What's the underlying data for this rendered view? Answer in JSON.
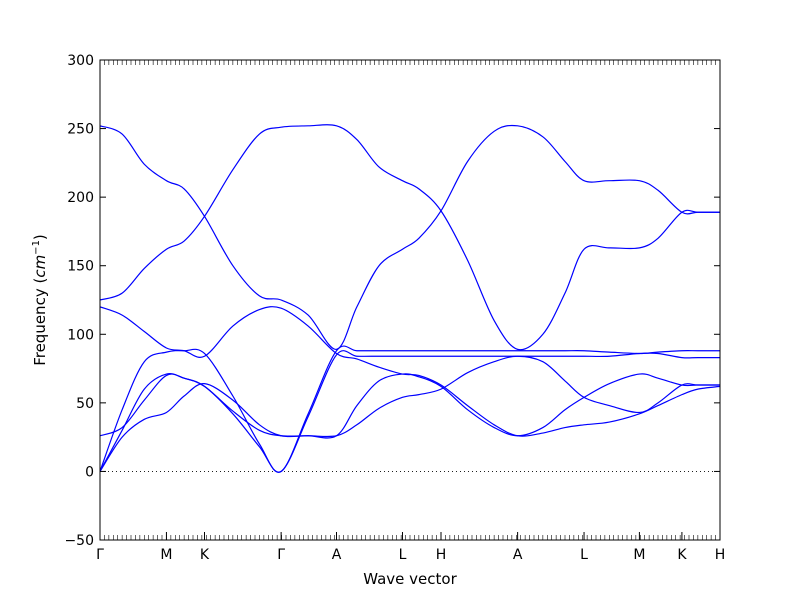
{
  "chart_data": {
    "type": "line",
    "title": "",
    "xlabel": "Wave vector",
    "ylabel": "Frequency",
    "ylabel_unit_base": "cm",
    "ylabel_unit_exp": "−1",
    "ylim": [
      -50,
      300
    ],
    "yticks": [
      -50,
      0,
      50,
      100,
      150,
      200,
      250,
      300
    ],
    "xlim": [
      0,
      14
    ],
    "xticks": [
      {
        "x": 0,
        "label": "Γ"
      },
      {
        "x": 1.5,
        "label": "M"
      },
      {
        "x": 2.36,
        "label": "K"
      },
      {
        "x": 4.09,
        "label": "Γ"
      },
      {
        "x": 5.34,
        "label": "A"
      },
      {
        "x": 6.83,
        "label": "L"
      },
      {
        "x": 7.7,
        "label": "H"
      },
      {
        "x": 9.43,
        "label": "A"
      },
      {
        "x": 10.93,
        "label": "L"
      },
      {
        "x": 12.18,
        "label": "M"
      },
      {
        "x": 13.14,
        "label": "K"
      },
      {
        "x": 14,
        "label": "H"
      }
    ],
    "zero_line": true,
    "grid": false,
    "color": "#0000ff",
    "series": [
      {
        "x": [
          0,
          0.5,
          1.0,
          1.5,
          1.9,
          2.36,
          3.0,
          3.6,
          4.09,
          4.7,
          5.34,
          5.8,
          6.3,
          6.83,
          7.2,
          7.7,
          8.3,
          8.9,
          9.43,
          10.0,
          10.5,
          10.93,
          11.5,
          12.18,
          12.6,
          13.14,
          13.5,
          14
        ],
        "y": [
          0,
          45,
          80,
          87,
          88,
          86,
          55,
          20,
          0,
          42,
          88,
          88,
          88,
          88,
          88,
          88,
          88,
          88,
          88,
          88,
          88,
          88,
          87,
          86,
          87,
          88,
          88,
          88
        ]
      },
      {
        "x": [
          0,
          0.5,
          1.0,
          1.5,
          1.9,
          2.36,
          3.0,
          3.6,
          4.09,
          4.7,
          5.34,
          5.8,
          6.3,
          6.83,
          7.2,
          7.7,
          8.3,
          8.9,
          9.43,
          10.0,
          10.5,
          10.93,
          11.5,
          12.18,
          12.6,
          13.14,
          13.5,
          14
        ],
        "y": [
          0,
          30,
          60,
          71,
          68,
          62,
          42,
          18,
          0,
          40,
          85,
          84,
          84,
          84,
          84,
          84,
          84,
          84,
          84,
          84,
          84,
          84,
          84,
          86,
          86,
          83,
          83,
          83
        ]
      },
      {
        "x": [
          0,
          0.5,
          1.0,
          1.5,
          1.9,
          2.36,
          3.0,
          3.6,
          4.09,
          4.7,
          5.34,
          5.8,
          6.3,
          6.83,
          7.2,
          7.7,
          8.3,
          8.9,
          9.43,
          10.0,
          10.5,
          10.93,
          11.5,
          12.18,
          12.6,
          13.14,
          13.5,
          14
        ],
        "y": [
          0,
          25,
          38,
          43,
          55,
          64,
          52,
          34,
          26,
          26,
          26,
          34,
          46,
          54,
          56,
          60,
          72,
          80,
          84,
          80,
          66,
          54,
          48,
          43,
          50,
          63,
          63,
          63
        ]
      },
      {
        "x": [
          0,
          0.5,
          1.0,
          1.5,
          1.9,
          2.36,
          3.0,
          3.6,
          4.09,
          4.7,
          5.34,
          5.8,
          6.3,
          6.83,
          7.2,
          7.7,
          8.3,
          8.9,
          9.43,
          10.0,
          10.5,
          10.93,
          11.5,
          12.18,
          12.6,
          13.14,
          13.5,
          14
        ],
        "y": [
          26,
          32,
          52,
          70,
          68,
          62,
          44,
          30,
          26,
          26,
          26,
          48,
          66,
          71,
          69,
          62,
          45,
          32,
          26,
          32,
          45,
          54,
          64,
          71,
          68,
          63,
          63,
          63
        ]
      },
      {
        "x": [
          0,
          0.5,
          1.0,
          1.5,
          1.9,
          2.36,
          3.0,
          3.6,
          4.09,
          4.7,
          5.34,
          5.8,
          6.3,
          6.83,
          7.2,
          7.7,
          8.3,
          8.9,
          9.43,
          10.0,
          10.5,
          10.93,
          11.5,
          12.18,
          12.6,
          13.14,
          13.5,
          14
        ],
        "y": [
          120,
          114,
          102,
          90,
          88,
          84,
          106,
          118,
          119,
          106,
          86,
          82,
          76,
          71,
          70,
          63,
          48,
          34,
          26,
          28,
          32,
          34,
          36,
          42,
          48,
          56,
          60,
          62
        ]
      },
      {
        "x": [
          0,
          0.5,
          1.0,
          1.5,
          1.9,
          2.36,
          3.0,
          3.6,
          4.09,
          4.7,
          5.34,
          5.8,
          6.3,
          6.83,
          7.2,
          7.7,
          8.3,
          8.9,
          9.43,
          10.0,
          10.5,
          10.93,
          11.5,
          12.18,
          12.6,
          13.14,
          13.5,
          14
        ],
        "y": [
          125,
          130,
          148,
          162,
          168,
          186,
          220,
          246,
          251,
          252,
          252,
          242,
          222,
          212,
          206,
          190,
          154,
          110,
          89,
          100,
          130,
          162,
          163,
          163,
          170,
          189,
          189,
          189
        ]
      },
      {
        "x": [
          0,
          0.5,
          1.0,
          1.5,
          1.9,
          2.36,
          3.0,
          3.6,
          4.09,
          4.7,
          5.34,
          5.8,
          6.3,
          6.83,
          7.2,
          7.7,
          8.3,
          8.9,
          9.43,
          10.0,
          10.5,
          10.93,
          11.5,
          12.18,
          12.6,
          13.14,
          13.5,
          14
        ],
        "y": [
          252,
          246,
          224,
          212,
          206,
          186,
          150,
          128,
          125,
          114,
          89,
          120,
          150,
          162,
          170,
          190,
          226,
          248,
          252,
          244,
          226,
          212,
          212,
          212,
          205,
          189,
          189,
          189
        ]
      }
    ]
  }
}
